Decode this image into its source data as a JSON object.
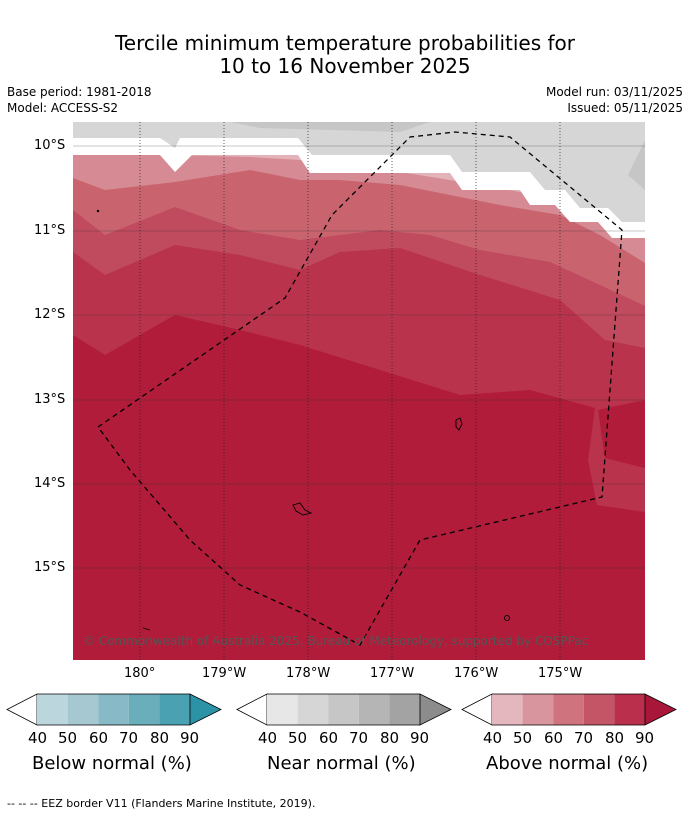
{
  "title": {
    "line1": "Tercile minimum temperature probabilities for",
    "line2": "10 to 16 November 2025"
  },
  "meta": {
    "base_period": "Base period: 1981-2018",
    "model": "Model: ACCESS-S2",
    "model_run": "Model run: 03/11/2025",
    "issued": "Issued: 05/11/2025"
  },
  "map": {
    "lat_labels": [
      "10°S",
      "11°S",
      "12°S",
      "13°S",
      "14°S",
      "15°S"
    ],
    "lon_labels": [
      "180°",
      "179°W",
      "178°W",
      "177°W",
      "176°W",
      "175°W"
    ],
    "copyright": "© Commonwealth of Australia 2025, Bureau of Meteorology, supported by COSPPac"
  },
  "legend": {
    "ticks": [
      "40",
      "50",
      "60",
      "70",
      "80",
      "90"
    ],
    "below": {
      "title": "Below normal (%)",
      "colors": [
        "#ffffff",
        "#bcd6de",
        "#a5c8d1",
        "#87b9c6",
        "#6aaebc",
        "#4aa1b2",
        "#2c93a7"
      ]
    },
    "near": {
      "title": "Near normal (%)",
      "colors": [
        "#ffffff",
        "#e7e7e7",
        "#d6d6d6",
        "#c6c6c6",
        "#b5b5b5",
        "#a3a3a3",
        "#8c8c8c"
      ]
    },
    "above": {
      "title": "Above normal (%)",
      "colors": [
        "#ffffff",
        "#e4b6bd",
        "#d9959e",
        "#cf737f",
        "#c45566",
        "#b92f4c",
        "#a8173a"
      ]
    }
  },
  "footnote": "--  --  -- EEZ border V11 (Flanders Marine Institute, 2019)."
}
